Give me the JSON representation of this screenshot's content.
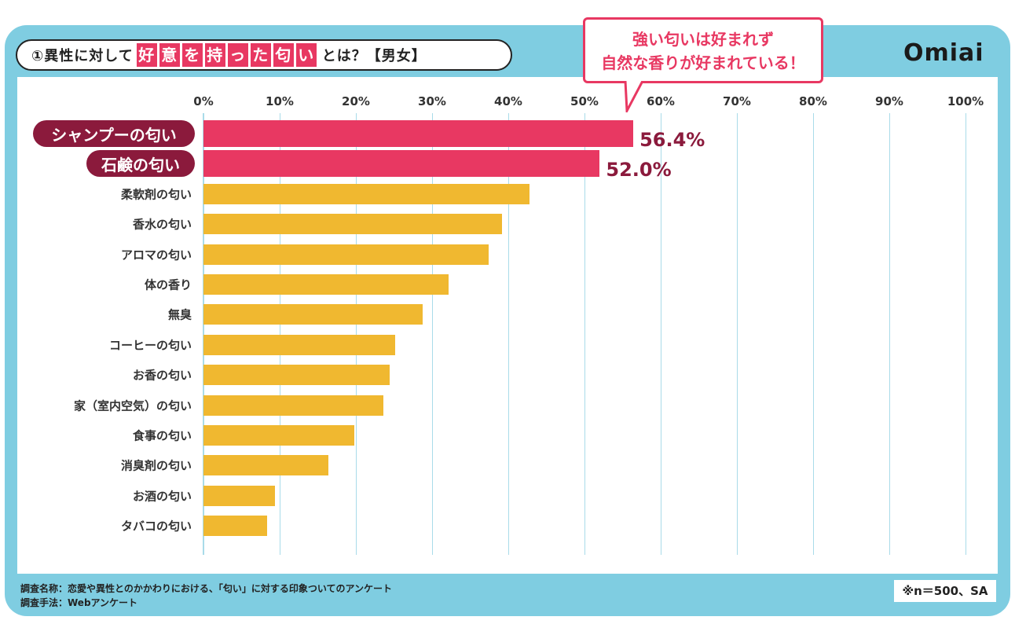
{
  "header": {
    "title_prefix": "①異性に対して",
    "title_highlight": [
      "好",
      "意",
      "を",
      "持",
      "っ",
      "た",
      "匂",
      "い"
    ],
    "title_suffix": "とは？【男女】",
    "callout_line1": "強い匂いは好まれず",
    "callout_line2": "自然な香りが好まれている！",
    "logo": "Omiai"
  },
  "footer": {
    "survey_name": "調査名称：恋愛や異性とのかかわりにおける、「匂い」に対する印象ついてのアンケート",
    "survey_method": "調査手法：Webアンケート",
    "sample": "※n＝500、SA"
  },
  "colors": {
    "frame": "#7fcde1",
    "accent": "#e83862",
    "label_dark": "#8b1a3c",
    "bar_default": "#f0b830",
    "grid": "#a9dbe9"
  },
  "chart_data": {
    "type": "bar",
    "orientation": "horizontal",
    "xlim": [
      0,
      100
    ],
    "ticks": [
      "0%",
      "10%",
      "20%",
      "30%",
      "40%",
      "50%",
      "60%",
      "70%",
      "80%",
      "90%",
      "100%"
    ],
    "categories": [
      "シャンプーの匂い",
      "石鹸の匂い",
      "柔軟剤の匂い",
      "香水の匂い",
      "アロマの匂い",
      "体の香り",
      "無臭",
      "コーヒーの匂い",
      "お香の匂い",
      "家（室内空気）の匂い",
      "食事の匂い",
      "消臭剤の匂い",
      "お酒の匂い",
      "タバコの匂い"
    ],
    "values": [
      56.4,
      52.0,
      42.8,
      39.2,
      37.4,
      32.2,
      28.8,
      25.2,
      24.4,
      23.6,
      19.8,
      16.4,
      9.4,
      8.4
    ],
    "highlighted": [
      true,
      true,
      false,
      false,
      false,
      false,
      false,
      false,
      false,
      false,
      false,
      false,
      false,
      false
    ],
    "value_labels": [
      "56.4%",
      "52.0%",
      "",
      "",
      "",
      "",
      "",
      "",
      "",
      "",
      "",
      "",
      "",
      ""
    ],
    "grid": true
  }
}
